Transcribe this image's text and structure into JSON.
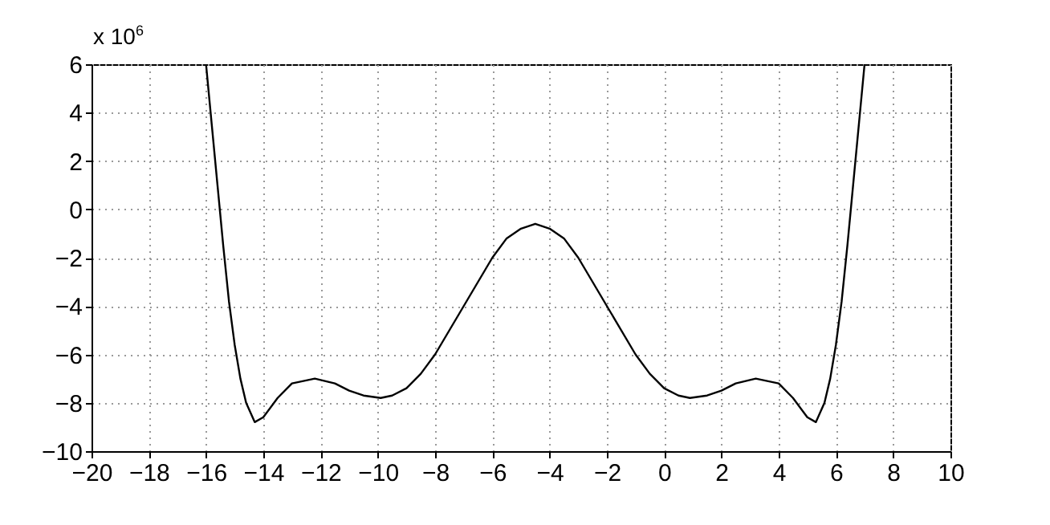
{
  "chart_data": {
    "type": "line",
    "x": [
      -16,
      -15.8,
      -15.6,
      -15.4,
      -15.2,
      -15,
      -14.8,
      -14.6,
      -14.3,
      -14,
      -13.5,
      -13,
      -12.2,
      -11.5,
      -11,
      -10.5,
      -9.9,
      -9.5,
      -9,
      -8.5,
      -8,
      -7,
      -6,
      -5.5,
      -5,
      -4.5,
      -4,
      -3.5,
      -3,
      -2,
      -1,
      -0.5,
      0,
      0.5,
      0.9,
      1.5,
      2,
      2.5,
      3.2,
      4,
      4.5,
      5,
      5.3,
      5.6,
      5.8,
      6,
      6.2,
      6.4,
      6.6,
      6.8,
      7
    ],
    "series": [
      {
        "color": "#000000",
        "values": [
          6,
          3.5,
          1,
          -1.5,
          -3.8,
          -5.6,
          -7,
          -8,
          -8.8,
          -8.6,
          -7.8,
          -7.2,
          -7,
          -7.2,
          -7.5,
          -7.7,
          -7.8,
          -7.7,
          -7.4,
          -6.8,
          -6,
          -4,
          -2,
          -1.2,
          -0.8,
          -0.6,
          -0.8,
          -1.2,
          -2,
          -4,
          -6,
          -6.8,
          -7.4,
          -7.7,
          -7.8,
          -7.7,
          -7.5,
          -7.2,
          -7,
          -7.2,
          -7.8,
          -8.6,
          -8.8,
          -8,
          -7,
          -5.6,
          -3.8,
          -1.5,
          1,
          3.5,
          6
        ]
      }
    ],
    "xlim": [
      -20,
      10
    ],
    "xticks": [
      -20,
      -18,
      -16,
      -14,
      -12,
      -10,
      -8,
      -6,
      -4,
      -2,
      0,
      2,
      4,
      6,
      8,
      10
    ],
    "ylim": [
      -10,
      6
    ],
    "yticks": [
      -10,
      -8,
      -6,
      -4,
      -2,
      0,
      2,
      4,
      6
    ],
    "grid": true,
    "annotations": [
      "x 10$^{6}$"
    ]
  }
}
